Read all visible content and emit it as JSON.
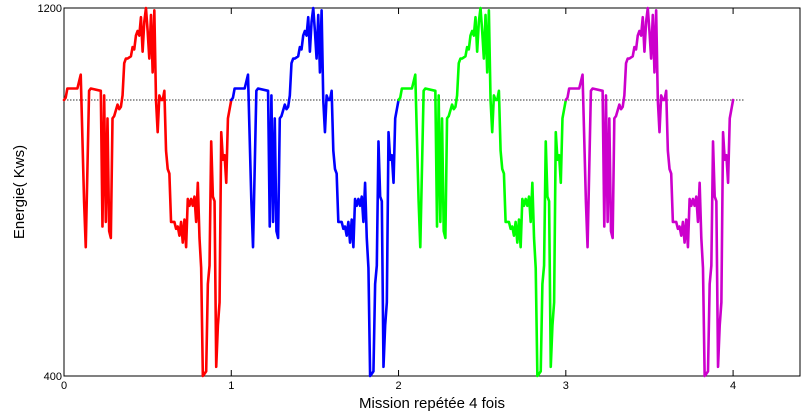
{
  "chart_data": {
    "type": "line",
    "title": "",
    "xlabel": "Mission repétée 4 fois",
    "ylabel": "Energie( Kws)",
    "xlim": [
      0,
      4.4
    ],
    "ylim": [
      400,
      1200
    ],
    "xticks": [
      "0",
      "1",
      "2",
      "3",
      "4"
    ],
    "yticks": [
      "400",
      "1200"
    ],
    "grid": false,
    "legend": "none",
    "reference_line": {
      "y": 1000,
      "x_range": [
        0,
        4.07
      ],
      "style": "dotted",
      "color": "#999999"
    },
    "cycle": {
      "x": [
        0,
        0.01,
        0.02,
        0.08,
        0.1,
        0.12,
        0.13,
        0.15,
        0.16,
        0.22,
        0.23,
        0.24,
        0.25,
        0.26,
        0.27,
        0.28,
        0.29,
        0.3,
        0.32,
        0.33,
        0.34,
        0.35,
        0.36,
        0.37,
        0.38,
        0.4,
        0.41,
        0.42,
        0.43,
        0.44,
        0.45,
        0.46,
        0.47,
        0.48,
        0.49,
        0.5,
        0.51,
        0.52,
        0.53,
        0.54,
        0.55,
        0.56,
        0.57,
        0.58,
        0.59,
        0.6,
        0.61,
        0.62,
        0.63,
        0.64,
        0.65,
        0.66,
        0.67,
        0.68,
        0.69,
        0.7,
        0.71,
        0.72,
        0.73,
        0.74,
        0.75,
        0.76,
        0.77,
        0.78,
        0.79,
        0.8,
        0.81,
        0.82,
        0.83,
        0.84,
        0.85,
        0.86,
        0.87,
        0.88,
        0.89,
        0.9,
        0.91,
        0.92,
        0.93,
        0.94,
        0.95,
        0.96,
        0.97,
        0.98,
        0.99,
        1.0
      ],
      "y": [
        1000,
        1005,
        1025,
        1025,
        1055,
        780,
        680,
        1020,
        1025,
        1020,
        725,
        1010,
        735,
        960,
        715,
        700,
        960,
        965,
        990,
        980,
        985,
        1010,
        1080,
        1090,
        1090,
        1095,
        1115,
        1110,
        1140,
        1150,
        1140,
        1180,
        1105,
        1170,
        1200,
        1150,
        1090,
        1185,
        1060,
        1195,
        1000,
        930,
        1010,
        1000,
        1000,
        1020,
        890,
        850,
        840,
        735,
        735,
        735,
        720,
        725,
        705,
        735,
        690,
        740,
        680,
        785,
        770,
        785,
        770,
        790,
        735,
        820,
        700,
        635,
        400,
        405,
        410,
        600,
        640,
        910,
        790,
        780,
        420,
        510,
        560,
        930,
        870,
        880,
        820,
        960,
        980,
        1000
      ]
    },
    "series": [
      {
        "name": "",
        "color": "#ff0000",
        "x_offset": 0
      },
      {
        "name": "",
        "color": "#0000ff",
        "x_offset": 1
      },
      {
        "name": "",
        "color": "#00ff00",
        "x_offset": 2
      },
      {
        "name": "",
        "color": "#cc00cc",
        "x_offset": 3
      }
    ]
  }
}
